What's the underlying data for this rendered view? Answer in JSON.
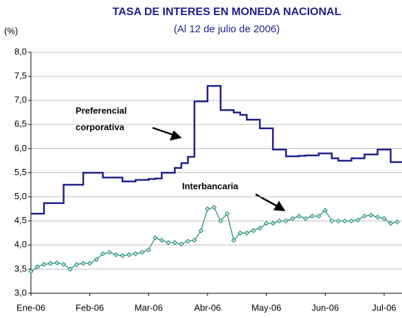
{
  "chart_data": {
    "type": "line",
    "title": "TASA DE INTERES EN MONEDA NACIONAL",
    "subtitle": "(Al 12 de julio de 2006)",
    "y_label": "(%)",
    "categories": [
      "Ene-06",
      null,
      null,
      null,
      null,
      null,
      null,
      null,
      null,
      "Feb-06",
      null,
      null,
      null,
      null,
      null,
      null,
      null,
      null,
      "Mar-06",
      null,
      null,
      null,
      null,
      null,
      null,
      null,
      null,
      "Abr-06",
      null,
      null,
      null,
      null,
      null,
      null,
      null,
      null,
      "May-06",
      null,
      null,
      null,
      null,
      null,
      null,
      null,
      null,
      "Jun-06",
      null,
      null,
      null,
      null,
      null,
      null,
      null,
      null,
      "Jul-06",
      null,
      null
    ],
    "series": [
      {
        "name": "Preferencial corporativa",
        "color": "#1f1f8a",
        "drawstyle": "steps-post",
        "markers": false,
        "values": [
          4.65,
          4.65,
          4.87,
          4.87,
          4.87,
          5.25,
          5.25,
          5.25,
          5.5,
          5.5,
          5.5,
          5.4,
          5.4,
          5.4,
          5.32,
          5.32,
          5.35,
          5.35,
          5.37,
          5.38,
          5.5,
          5.5,
          5.6,
          5.7,
          5.83,
          6.98,
          6.98,
          7.3,
          7.3,
          6.8,
          6.8,
          6.75,
          6.7,
          6.6,
          6.6,
          6.42,
          6.42,
          5.98,
          5.98,
          5.84,
          5.84,
          5.85,
          5.86,
          5.86,
          5.9,
          5.9,
          5.8,
          5.75,
          5.75,
          5.8,
          5.8,
          5.88,
          5.88,
          5.98,
          5.98,
          5.72,
          5.72
        ]
      },
      {
        "name": "Interbancaria",
        "color": "#1a8a7a",
        "drawstyle": "linear",
        "markers": true,
        "values": [
          3.45,
          3.55,
          3.6,
          3.62,
          3.63,
          3.6,
          3.5,
          3.6,
          3.62,
          3.62,
          3.7,
          3.82,
          3.85,
          3.8,
          3.78,
          3.8,
          3.82,
          3.85,
          3.9,
          4.15,
          4.1,
          4.05,
          4.05,
          4.02,
          4.08,
          4.1,
          4.3,
          4.75,
          4.78,
          4.5,
          4.65,
          4.1,
          4.25,
          4.25,
          4.3,
          4.35,
          4.45,
          4.45,
          4.5,
          4.5,
          4.55,
          4.6,
          4.55,
          4.6,
          4.6,
          4.72,
          4.5,
          4.5,
          4.5,
          4.5,
          4.52,
          4.6,
          4.62,
          4.58,
          4.55,
          4.45,
          4.48
        ]
      }
    ],
    "annotations": [
      {
        "lines": [
          "Preferencial",
          "corporativa"
        ]
      },
      {
        "lines": [
          "Interbancaria"
        ]
      }
    ],
    "ylim": [
      3,
      8
    ],
    "yticks": [
      {
        "value": 3,
        "label": "3,0"
      },
      {
        "value": 3.5,
        "label": "3,5"
      },
      {
        "value": 4,
        "label": "4,0"
      },
      {
        "value": 4.5,
        "label": "4,5"
      },
      {
        "value": 5,
        "label": "5,0"
      },
      {
        "value": 5.5,
        "label": "5,5"
      },
      {
        "value": 6,
        "label": "6,0"
      },
      {
        "value": 6.5,
        "label": "6,5"
      },
      {
        "value": 7,
        "label": "7,0"
      },
      {
        "value": 7.5,
        "label": "7,5"
      },
      {
        "value": 8,
        "label": "8,0"
      }
    ],
    "grid": true
  }
}
